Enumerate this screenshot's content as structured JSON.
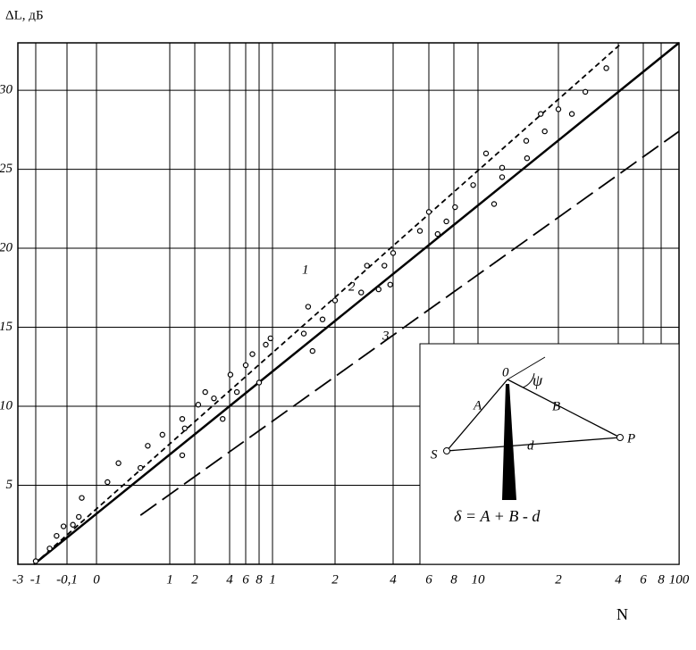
{
  "chart_data": {
    "type": "scatter",
    "y_label": "ΔL, дБ",
    "x_label": "N",
    "ylim": [
      0,
      33
    ],
    "yticks": [
      5,
      10,
      15,
      20,
      25,
      30
    ],
    "xlim": [
      -0.3,
      10
    ],
    "xticks": [
      {
        "value": -0.3,
        "label": "-3"
      },
      {
        "value": -0.1,
        "label": "-1"
      },
      {
        "value": -0.01,
        "label": "-0,1"
      },
      0,
      {
        "value": 0.01,
        "label": "1"
      },
      {
        "value": 0.02,
        "label": "2"
      },
      {
        "value": 0.04,
        "label": "4"
      },
      {
        "value": 0.06,
        "label": "6"
      },
      {
        "value": 0.08,
        "label": "8"
      },
      {
        "value": 0.1,
        "label": "1"
      },
      {
        "value": 0.2,
        "label": "2"
      },
      {
        "value": 0.4,
        "label": "4"
      },
      {
        "value": 0.6,
        "label": "6"
      },
      {
        "value": 0.8,
        "label": "8"
      },
      {
        "value": 1,
        "label": "10"
      },
      {
        "value": 2,
        "label": "2"
      },
      {
        "value": 4,
        "label": "4"
      },
      {
        "value": 6,
        "label": "6"
      },
      {
        "value": 8,
        "label": "8"
      },
      {
        "value": 10,
        "label": "100"
      }
    ],
    "grid": true,
    "series": [
      {
        "name": "1",
        "color": "#000",
        "style": "dashed",
        "x": [
          -0.12,
          4.3
        ],
        "values": [
          0,
          33
        ]
      },
      {
        "name": "2",
        "color": "#000",
        "style": "solid",
        "x": [
          -0.12,
          10
        ],
        "values": [
          0,
          33
        ]
      },
      {
        "name": "3",
        "color": "#000",
        "style": "longdash",
        "x": [
          0.006,
          10
        ],
        "values": [
          3.1,
          27.4
        ]
      }
    ],
    "points": {
      "color": "#000",
      "x": [
        -0.1,
        -0.06,
        -0.04,
        -0.02,
        -0.008,
        -0.006,
        -0.005,
        0.0015,
        0.003,
        0.006,
        0.007,
        0.009,
        0.015,
        0.016,
        0.015,
        0.022,
        0.026,
        0.031,
        0.036,
        0.041,
        0.049,
        0.06,
        0.07,
        0.08,
        0.09,
        0.097,
        0.15,
        0.157,
        0.164,
        0.18,
        0.2,
        0.29,
        0.31,
        0.35,
        0.37,
        0.39,
        0.4,
        0.55,
        0.6,
        0.67,
        0.74,
        0.81,
        0.96,
        1.1,
        1.3,
        1.2,
        1.3,
        1.6,
        1.61,
        1.78,
        1.83,
        2,
        2.45,
        2.9,
        3.6
      ],
      "values": [
        0.2,
        1.0,
        1.8,
        2.4,
        2.5,
        3.0,
        4.2,
        5.2,
        6.4,
        6.1,
        7.5,
        8.2,
        9.2,
        8.6,
        6.9,
        10.1,
        10.9,
        10.5,
        9.2,
        12,
        10.9,
        12.6,
        13.3,
        11.5,
        13.9,
        14.3,
        14.6,
        16.3,
        13.5,
        15.5,
        16.7,
        17.2,
        18.9,
        17.4,
        18.9,
        17.7,
        19.7,
        21.1,
        22.3,
        20.9,
        21.7,
        22.6,
        24,
        26,
        25.1,
        22.8,
        24.5,
        26.8,
        25.7,
        28.5,
        27.4,
        28.8,
        28.5,
        29.9,
        31.4
      ]
    }
  },
  "inset": {
    "o": "0",
    "psi": "ψ",
    "a": "A",
    "b": "B",
    "s": "S",
    "d": "d",
    "p": "P",
    "formula": "δ = A + B - d"
  }
}
